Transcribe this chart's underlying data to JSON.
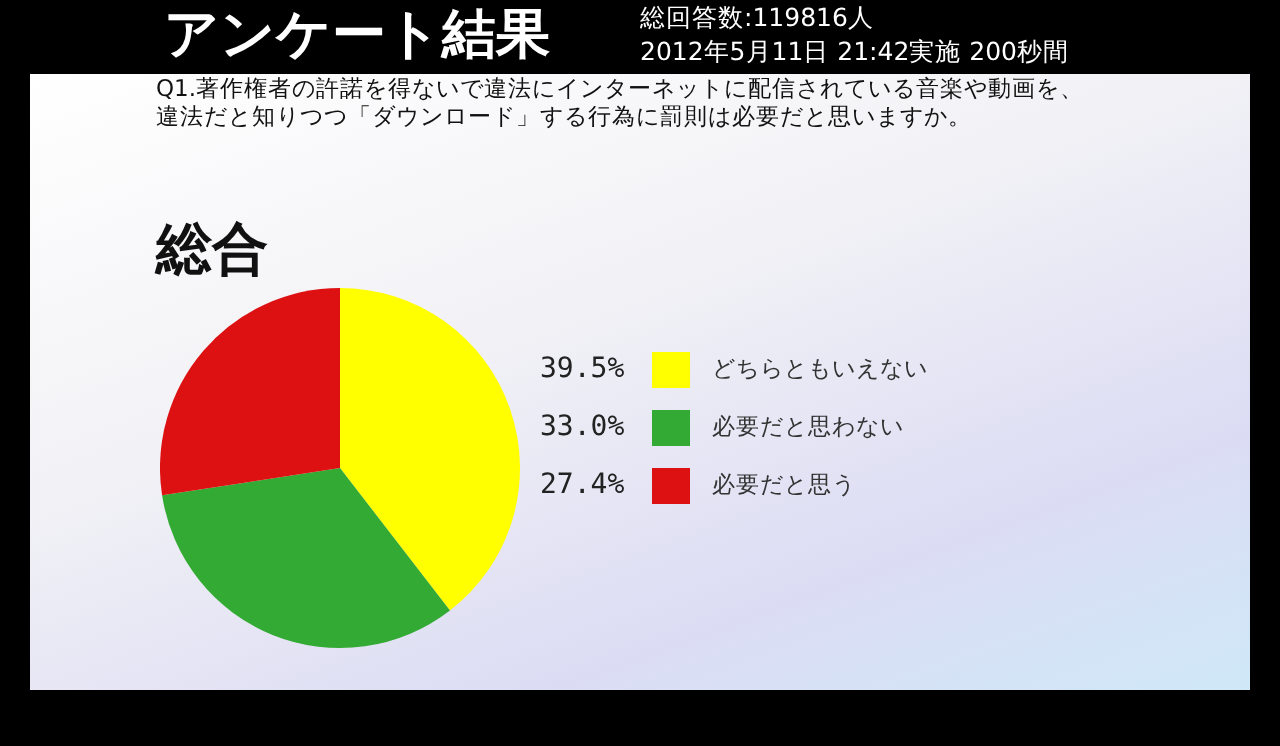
{
  "chart_data": {
    "type": "pie",
    "title": "アンケート結果",
    "subtitle": "Q1.著作権者の許諾を得ないで違法にインターネットに配信されている音楽や動画を、違法だと知りつつ「ダウンロード」する行為に罰則は必要だと思いますか。",
    "annotations": [
      "総回答数:119816人",
      "2012年5月11日 21:42実施 200秒間",
      "総合"
    ],
    "categories": [
      "どちらともいえない",
      "必要だと思わない",
      "必要だと思う"
    ],
    "values": [
      39.5,
      33.0,
      27.4
    ],
    "colors": [
      "#ffff00",
      "#33aa33",
      "#dd1111"
    ],
    "value_labels": [
      "39.5%",
      "33.0%",
      "27.4%"
    ],
    "legend": "right"
  }
}
